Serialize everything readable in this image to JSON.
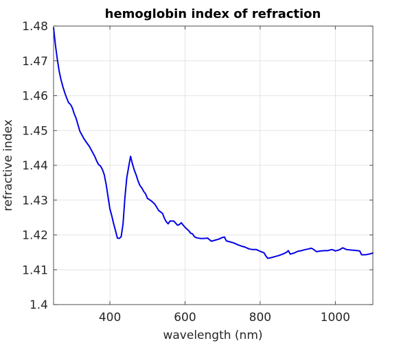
{
  "chart_data": {
    "type": "line",
    "title": "hemoglobin index of refraction",
    "xlabel": "wavelength (nm)",
    "ylabel": "refractive index",
    "xlim": [
      250,
      1100
    ],
    "ylim": [
      1.4,
      1.48
    ],
    "xticks": [
      400,
      600,
      800,
      1000
    ],
    "yticks": [
      1.4,
      1.41,
      1.42,
      1.43,
      1.44,
      1.45,
      1.46,
      1.47,
      1.48
    ],
    "xtick_labels": [
      "400",
      "600",
      "800",
      "1000"
    ],
    "ytick_labels": [
      "1.4",
      "1.41",
      "1.42",
      "1.43",
      "1.44",
      "1.45",
      "1.46",
      "1.47",
      "1.48"
    ],
    "grid": true,
    "legend": false,
    "series": [
      {
        "color": "#0000e6",
        "x": [
          250,
          255,
          260,
          265,
          270,
          275,
          280,
          285,
          290,
          295,
          300,
          305,
          310,
          320,
          330,
          340,
          345,
          350,
          355,
          360,
          365,
          370,
          375,
          380,
          385,
          390,
          395,
          400,
          405,
          410,
          415,
          420,
          425,
          430,
          435,
          440,
          445,
          450,
          455,
          460,
          465,
          470,
          475,
          480,
          485,
          490,
          495,
          500,
          510,
          520,
          530,
          540,
          545,
          550,
          555,
          560,
          570,
          580,
          585,
          590,
          600,
          610,
          615,
          620,
          625,
          630,
          640,
          650,
          660,
          670,
          680,
          690,
          700,
          705,
          710,
          720,
          730,
          740,
          750,
          760,
          770,
          780,
          790,
          800,
          810,
          815,
          820,
          830,
          840,
          850,
          860,
          870,
          875,
          880,
          890,
          900,
          910,
          920,
          930,
          935,
          940,
          950,
          960,
          970,
          980,
          990,
          995,
          1000,
          1010,
          1020,
          1030,
          1040,
          1050,
          1060,
          1065,
          1070,
          1080,
          1090,
          1100
        ],
        "y": [
          1.4795,
          1.4745,
          1.4705,
          1.467,
          1.4645,
          1.4625,
          1.4608,
          1.4593,
          1.458,
          1.4575,
          1.4565,
          1.4548,
          1.4535,
          1.4498,
          1.4478,
          1.4462,
          1.4455,
          1.4445,
          1.4435,
          1.4425,
          1.4412,
          1.4402,
          1.4398,
          1.4388,
          1.4373,
          1.4345,
          1.431,
          1.4275,
          1.4255,
          1.4232,
          1.4212,
          1.4191,
          1.419,
          1.4195,
          1.4232,
          1.4308,
          1.4365,
          1.4396,
          1.4426,
          1.4404,
          1.4386,
          1.4372,
          1.4355,
          1.4342,
          1.4335,
          1.4325,
          1.4318,
          1.4305,
          1.4298,
          1.4288,
          1.427,
          1.4262,
          1.4248,
          1.4238,
          1.4232,
          1.424,
          1.424,
          1.4228,
          1.423,
          1.4235,
          1.4222,
          1.4212,
          1.4205,
          1.4203,
          1.4195,
          1.4192,
          1.419,
          1.419,
          1.4191,
          1.4182,
          1.4185,
          1.4188,
          1.4193,
          1.4194,
          1.4183,
          1.418,
          1.4177,
          1.4172,
          1.4168,
          1.4165,
          1.416,
          1.4158,
          1.4158,
          1.4153,
          1.4149,
          1.414,
          1.4133,
          1.4135,
          1.4138,
          1.4141,
          1.4145,
          1.415,
          1.4155,
          1.4145,
          1.4148,
          1.4153,
          1.4155,
          1.4158,
          1.416,
          1.4162,
          1.416,
          1.4152,
          1.4154,
          1.4155,
          1.4155,
          1.4158,
          1.4157,
          1.4154,
          1.4157,
          1.4163,
          1.4158,
          1.4157,
          1.4156,
          1.4155,
          1.4154,
          1.4143,
          1.4143,
          1.4145,
          1.4148
        ]
      }
    ]
  }
}
